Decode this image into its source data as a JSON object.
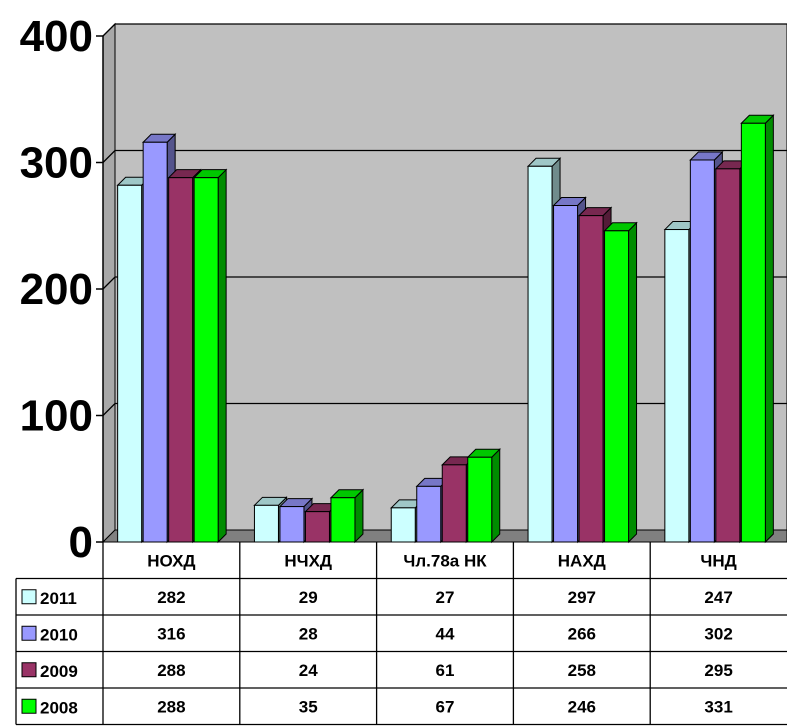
{
  "chart_data": {
    "type": "bar",
    "categories": [
      "НОХД",
      "НЧХД",
      "Чл.78а НК",
      "НАХД",
      "ЧНД"
    ],
    "series": [
      {
        "name": "2011",
        "color": "#ccffff",
        "values": [
          282,
          29,
          27,
          297,
          247
        ]
      },
      {
        "name": "2010",
        "color": "#9999ff",
        "values": [
          316,
          28,
          44,
          266,
          302
        ]
      },
      {
        "name": "2009",
        "color": "#993366",
        "values": [
          288,
          24,
          61,
          258,
          295
        ]
      },
      {
        "name": "2008",
        "color": "#00ff00",
        "values": [
          288,
          35,
          67,
          246,
          331
        ]
      }
    ],
    "yticks": [
      "0",
      "100",
      "200",
      "300",
      "400"
    ],
    "ylim": [
      0,
      400
    ],
    "grid": true,
    "legend": "data-table-left",
    "plot_background": "#c0c0c0"
  }
}
